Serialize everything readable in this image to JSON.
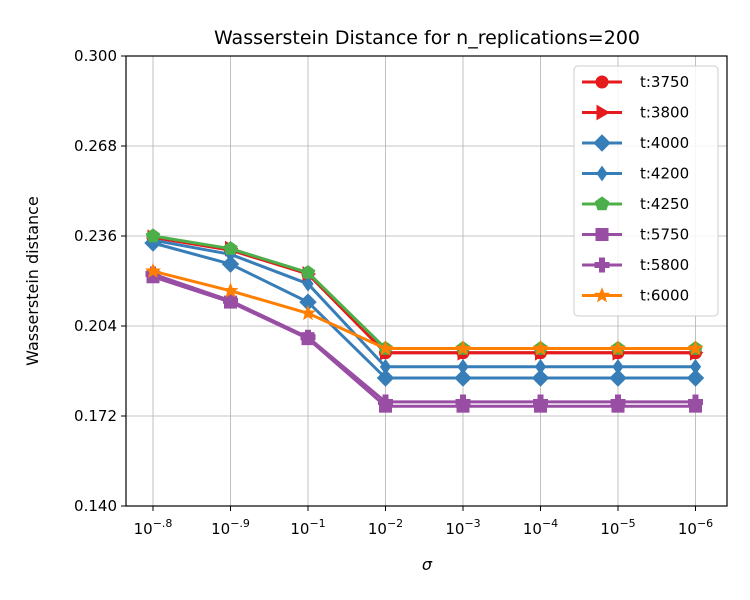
{
  "chart_data": {
    "type": "line",
    "title": "Wasserstein Distance for n_replications=200",
    "xlabel": "σ",
    "ylabel": "Wasserstein distance",
    "categories": [
      {
        "base": "10",
        "exp": "−.8"
      },
      {
        "base": "10",
        "exp": "−.9"
      },
      {
        "base": "10",
        "exp": "−1"
      },
      {
        "base": "10",
        "exp": "−2"
      },
      {
        "base": "10",
        "exp": "−3"
      },
      {
        "base": "10",
        "exp": "−4"
      },
      {
        "base": "10",
        "exp": "−5"
      },
      {
        "base": "10",
        "exp": "−6"
      }
    ],
    "ylim": [
      0.14,
      0.3
    ],
    "yticks": [
      "0.140",
      "0.172",
      "0.204",
      "0.236",
      "0.268",
      "0.300"
    ],
    "grid": true,
    "legend_position": "top-right",
    "series": [
      {
        "name": "t:3750",
        "color": "#e41a1c",
        "marker": "circle",
        "values": [
          0.2355,
          0.231,
          0.2225,
          0.1945,
          0.1945,
          0.1945,
          0.1945,
          0.1945
        ]
      },
      {
        "name": "t:3800",
        "color": "#e41a1c",
        "marker": "triangle-right",
        "values": [
          0.2355,
          0.2315,
          0.2225,
          0.1945,
          0.1945,
          0.1945,
          0.1945,
          0.1945
        ]
      },
      {
        "name": "t:4000",
        "color": "#377eb8",
        "marker": "diamond",
        "values": [
          0.2335,
          0.226,
          0.2125,
          0.1855,
          0.1855,
          0.1855,
          0.1855,
          0.1855
        ]
      },
      {
        "name": "t:4200",
        "color": "#377eb8",
        "marker": "thin-diamond",
        "values": [
          0.2345,
          0.2295,
          0.219,
          0.1895,
          0.1895,
          0.1895,
          0.1895,
          0.1895
        ]
      },
      {
        "name": "t:4250",
        "color": "#4daf4a",
        "marker": "pentagon",
        "values": [
          0.236,
          0.2315,
          0.223,
          0.196,
          0.196,
          0.196,
          0.196,
          0.196
        ]
      },
      {
        "name": "t:5750",
        "color": "#984ea3",
        "marker": "square",
        "values": [
          0.2215,
          0.2125,
          0.1995,
          0.1755,
          0.1755,
          0.1755,
          0.1755,
          0.1755
        ]
      },
      {
        "name": "t:5800",
        "color": "#984ea3",
        "marker": "plus",
        "values": [
          0.2225,
          0.213,
          0.2,
          0.177,
          0.177,
          0.177,
          0.177,
          0.177
        ]
      },
      {
        "name": "t:6000",
        "color": "#ff7f00",
        "marker": "star",
        "values": [
          0.2235,
          0.2165,
          0.2085,
          0.196,
          0.196,
          0.196,
          0.196,
          0.196
        ]
      }
    ]
  }
}
